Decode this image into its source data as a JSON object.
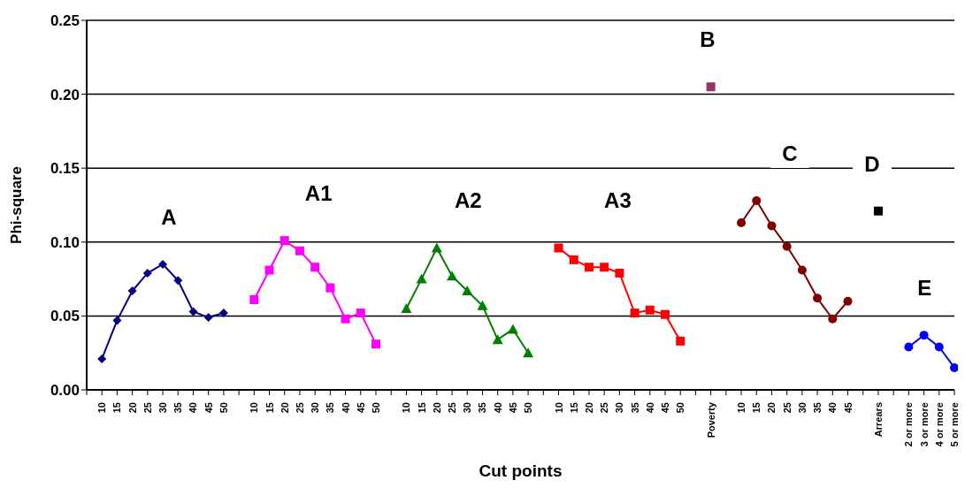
{
  "chart_data": {
    "type": "line",
    "xlabel": "Cut points",
    "ylabel": "Phi-square",
    "categories": [
      null,
      "10",
      "15",
      "20",
      "25",
      "30",
      "35",
      "40",
      "45",
      "50",
      null,
      "10",
      "15",
      "20",
      "25",
      "30",
      "35",
      "40",
      "45",
      "50",
      null,
      "10",
      "15",
      "20",
      "25",
      "30",
      "35",
      "40",
      "45",
      "50",
      null,
      "10",
      "15",
      "20",
      "25",
      "30",
      "35",
      "40",
      "45",
      "50",
      null,
      "Poverty",
      null,
      "10",
      "15",
      "20",
      "25",
      "30",
      "35",
      "40",
      "45",
      null,
      "Arrears",
      null,
      "2 or more",
      "3 or more",
      "4 or more",
      "5 or more"
    ],
    "series": [
      {
        "name": "A",
        "color": "#000080",
        "marker": "diamond",
        "values": [
          null,
          0.021,
          0.047,
          0.067,
          0.079,
          0.085,
          0.074,
          0.053,
          0.049,
          0.052,
          null,
          null,
          null,
          null,
          null,
          null,
          null,
          null,
          null,
          null,
          null,
          null,
          null,
          null,
          null,
          null,
          null,
          null,
          null,
          null,
          null,
          null,
          null,
          null,
          null,
          null,
          null,
          null,
          null,
          null,
          null,
          null,
          null,
          null,
          null,
          null,
          null,
          null,
          null,
          null,
          null,
          null,
          null,
          null,
          null,
          null,
          null,
          null
        ]
      },
      {
        "name": "A1",
        "color": "#ff00ff",
        "marker": "square",
        "values": [
          null,
          null,
          null,
          null,
          null,
          null,
          null,
          null,
          null,
          null,
          null,
          0.061,
          0.081,
          0.101,
          0.094,
          0.083,
          0.069,
          0.048,
          0.052,
          0.031,
          null,
          null,
          null,
          null,
          null,
          null,
          null,
          null,
          null,
          null,
          null,
          null,
          null,
          null,
          null,
          null,
          null,
          null,
          null,
          null,
          null,
          null,
          null,
          null,
          null,
          null,
          null,
          null,
          null,
          null,
          null,
          null,
          null,
          null,
          null,
          null,
          null,
          null
        ]
      },
      {
        "name": "A2",
        "color": "#008000",
        "marker": "triangle",
        "values": [
          null,
          null,
          null,
          null,
          null,
          null,
          null,
          null,
          null,
          null,
          null,
          null,
          null,
          null,
          null,
          null,
          null,
          null,
          null,
          null,
          null,
          0.055,
          0.075,
          0.096,
          0.077,
          0.067,
          0.057,
          0.034,
          0.041,
          0.025,
          null,
          null,
          null,
          null,
          null,
          null,
          null,
          null,
          null,
          null,
          null,
          null,
          null,
          null,
          null,
          null,
          null,
          null,
          null,
          null,
          null,
          null,
          null,
          null,
          null,
          null,
          null,
          null
        ]
      },
      {
        "name": "A3",
        "color": "#ff0000",
        "marker": "square",
        "values": [
          null,
          null,
          null,
          null,
          null,
          null,
          null,
          null,
          null,
          null,
          null,
          null,
          null,
          null,
          null,
          null,
          null,
          null,
          null,
          null,
          null,
          null,
          null,
          null,
          null,
          null,
          null,
          null,
          null,
          null,
          null,
          0.096,
          0.088,
          0.083,
          0.083,
          0.079,
          0.052,
          0.054,
          0.051,
          0.033,
          null,
          null,
          null,
          null,
          null,
          null,
          null,
          null,
          null,
          null,
          null,
          null,
          null,
          null,
          null,
          null,
          null,
          null
        ]
      },
      {
        "name": "B",
        "color": "#993366",
        "marker": "square",
        "values": [
          null,
          null,
          null,
          null,
          null,
          null,
          null,
          null,
          null,
          null,
          null,
          null,
          null,
          null,
          null,
          null,
          null,
          null,
          null,
          null,
          null,
          null,
          null,
          null,
          null,
          null,
          null,
          null,
          null,
          null,
          null,
          null,
          null,
          null,
          null,
          null,
          null,
          null,
          null,
          null,
          null,
          0.205,
          null,
          null,
          null,
          null,
          null,
          null,
          null,
          null,
          null,
          null,
          null,
          null,
          null,
          null,
          null,
          null
        ]
      },
      {
        "name": "C",
        "color": "#800000",
        "marker": "circle",
        "values": [
          null,
          null,
          null,
          null,
          null,
          null,
          null,
          null,
          null,
          null,
          null,
          null,
          null,
          null,
          null,
          null,
          null,
          null,
          null,
          null,
          null,
          null,
          null,
          null,
          null,
          null,
          null,
          null,
          null,
          null,
          null,
          null,
          null,
          null,
          null,
          null,
          null,
          null,
          null,
          null,
          null,
          null,
          null,
          0.113,
          0.128,
          0.111,
          0.097,
          0.081,
          0.062,
          0.048,
          0.06,
          null,
          null,
          null,
          null,
          null,
          null,
          null
        ]
      },
      {
        "name": "D",
        "color": "#000000",
        "marker": "square",
        "values": [
          null,
          null,
          null,
          null,
          null,
          null,
          null,
          null,
          null,
          null,
          null,
          null,
          null,
          null,
          null,
          null,
          null,
          null,
          null,
          null,
          null,
          null,
          null,
          null,
          null,
          null,
          null,
          null,
          null,
          null,
          null,
          null,
          null,
          null,
          null,
          null,
          null,
          null,
          null,
          null,
          null,
          null,
          null,
          null,
          null,
          null,
          null,
          null,
          null,
          null,
          null,
          null,
          0.121,
          null,
          null,
          null,
          null,
          null
        ]
      },
      {
        "name": "E",
        "color": "#0000ff",
        "marker": "circle",
        "values": [
          null,
          null,
          null,
          null,
          null,
          null,
          null,
          null,
          null,
          null,
          null,
          null,
          null,
          null,
          null,
          null,
          null,
          null,
          null,
          null,
          null,
          null,
          null,
          null,
          null,
          null,
          null,
          null,
          null,
          null,
          null,
          null,
          null,
          null,
          null,
          null,
          null,
          null,
          null,
          null,
          null,
          null,
          null,
          null,
          null,
          null,
          null,
          null,
          null,
          null,
          null,
          null,
          null,
          null,
          0.029,
          0.037,
          0.029,
          0.015
        ]
      }
    ],
    "ylim": [
      0,
      0.25
    ],
    "yticks": [
      {
        "value": 0,
        "label": "0.00"
      },
      {
        "value": 0.05,
        "label": "0.05"
      },
      {
        "value": 0.1,
        "label": "0.10"
      },
      {
        "value": 0.15,
        "label": "0.15"
      },
      {
        "value": 0.2,
        "label": "0.20"
      },
      {
        "value": 0.25,
        "label": "0.25"
      }
    ],
    "grid": "y",
    "legend": false
  }
}
